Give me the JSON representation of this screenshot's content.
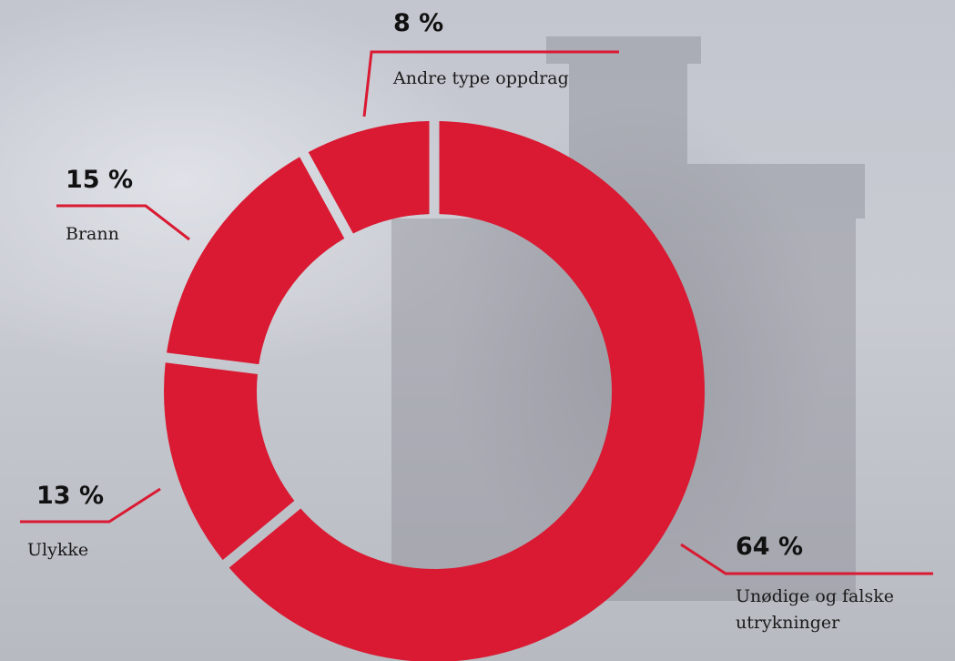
{
  "chart_data": {
    "type": "donut",
    "categories": [
      "Unødige og falske utrykninger",
      "Ulykke",
      "Brann",
      "Andre type oppdrag"
    ],
    "values": [
      64,
      13,
      15,
      8
    ],
    "value_labels": [
      "64 %",
      "13 %",
      "15 %",
      "8 %"
    ],
    "color": "#d91a32"
  }
}
